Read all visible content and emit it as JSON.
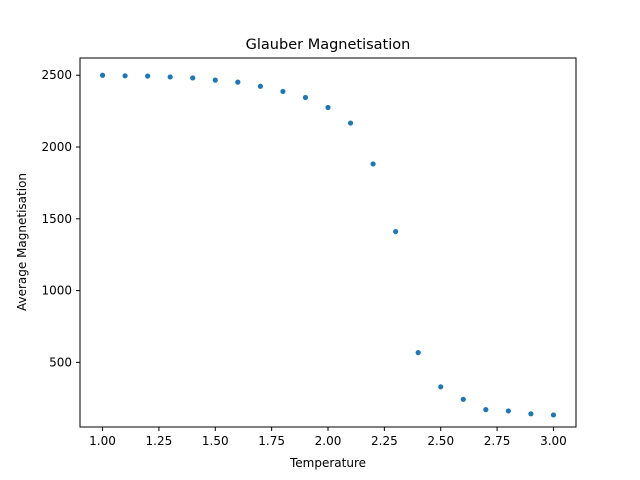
{
  "chart_data": {
    "type": "scatter",
    "title": "Glauber Magnetisation",
    "xlabel": "Temperature",
    "ylabel": "Average Magnetisation",
    "xlim": [
      0.9,
      3.1
    ],
    "ylim": [
      50,
      2620
    ],
    "xticks": [
      "1.00",
      "1.25",
      "1.50",
      "1.75",
      "2.00",
      "2.25",
      "2.50",
      "2.75",
      "3.00"
    ],
    "yticks": [
      "500",
      "1000",
      "1500",
      "2000",
      "2500"
    ],
    "grid": false,
    "marker_color": "#1f77b4",
    "series": [
      {
        "x": [
          1.0,
          1.1,
          1.2,
          1.3,
          1.4,
          1.5,
          1.6,
          1.7,
          1.8,
          1.9,
          2.0,
          2.1,
          2.2,
          2.3,
          2.4,
          2.5,
          2.6,
          2.7,
          2.8,
          2.9,
          3.0
        ],
        "y": [
          2500,
          2496,
          2494,
          2488,
          2481,
          2466,
          2452,
          2423,
          2387,
          2345,
          2275,
          2167,
          1882,
          1411,
          568,
          330,
          243,
          171,
          162,
          142,
          134
        ]
      }
    ]
  }
}
